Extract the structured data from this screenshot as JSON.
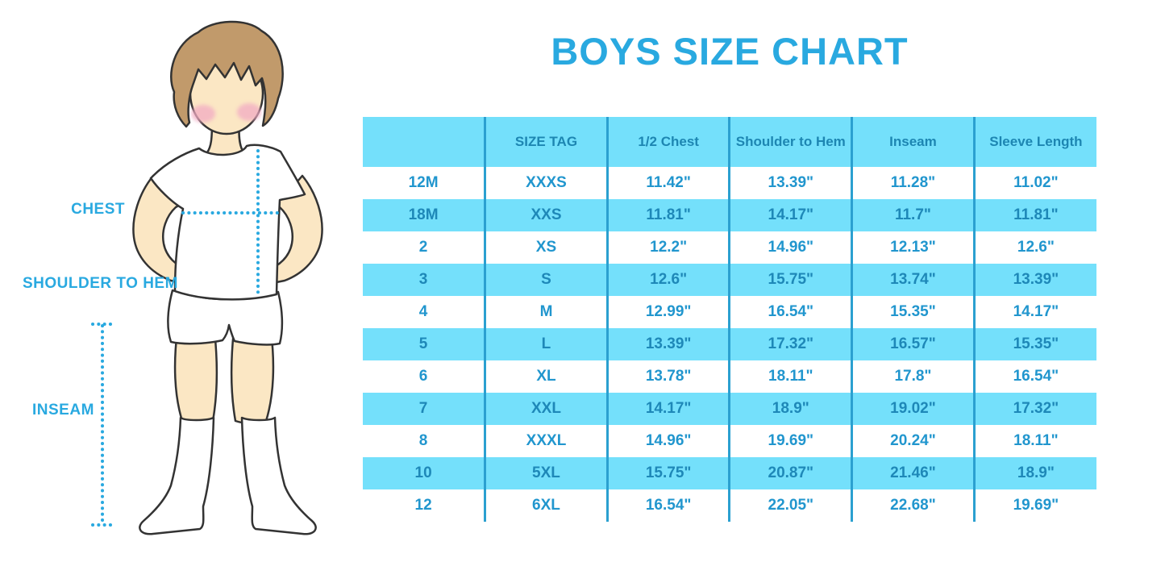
{
  "page": {
    "title": "BOYS SIZE CHART"
  },
  "colors": {
    "accent_blue": "#29A9E0",
    "table_fill_blue": "#74E0FB",
    "table_divider_blue": "#2BA0D0",
    "header_text_blue": "#1D86B2",
    "cell_text_blue": "#2196CE",
    "skin": "#FBE7C4",
    "hair_brown": "#C19A6B",
    "cheek_pink": "#F2ABC3"
  },
  "figure": {
    "labels": {
      "chest": "CHEST",
      "shoulder_to_hem": "SHOULDER TO HEM",
      "inseam": "INSEAM"
    }
  },
  "chart_data": {
    "type": "table",
    "title": "BOYS SIZE CHART",
    "columns": [
      "",
      "SIZE TAG",
      "1/2 Chest",
      "Shoulder to Hem",
      "Inseam",
      "Sleeve Length"
    ],
    "rows": [
      [
        "12M",
        "XXXS",
        "11.42\"",
        "13.39\"",
        "11.28\"",
        "11.02\""
      ],
      [
        "18M",
        "XXS",
        "11.81\"",
        "14.17\"",
        "11.7\"",
        "11.81\""
      ],
      [
        "2",
        "XS",
        "12.2\"",
        "14.96\"",
        "12.13\"",
        "12.6\""
      ],
      [
        "3",
        "S",
        "12.6\"",
        "15.75\"",
        "13.74\"",
        "13.39\""
      ],
      [
        "4",
        "M",
        "12.99\"",
        "16.54\"",
        "15.35\"",
        "14.17\""
      ],
      [
        "5",
        "L",
        "13.39\"",
        "17.32\"",
        "16.57\"",
        "15.35\""
      ],
      [
        "6",
        "XL",
        "13.78\"",
        "18.11\"",
        "17.8\"",
        "16.54\""
      ],
      [
        "7",
        "XXL",
        "14.17\"",
        "18.9\"",
        "19.02\"",
        "17.32\""
      ],
      [
        "8",
        "XXXL",
        "14.96\"",
        "19.69\"",
        "20.24\"",
        "18.11\""
      ],
      [
        "10",
        "5XL",
        "15.75\"",
        "20.87\"",
        "21.46\"",
        "18.9\""
      ],
      [
        "12",
        "6XL",
        "16.54\"",
        "22.05\"",
        "22.68\"",
        "19.69\""
      ]
    ],
    "striped_rows_zero_based": [
      1,
      3,
      5,
      7,
      9
    ],
    "legend_position": "none",
    "grid": "vertical-dividers-only"
  }
}
